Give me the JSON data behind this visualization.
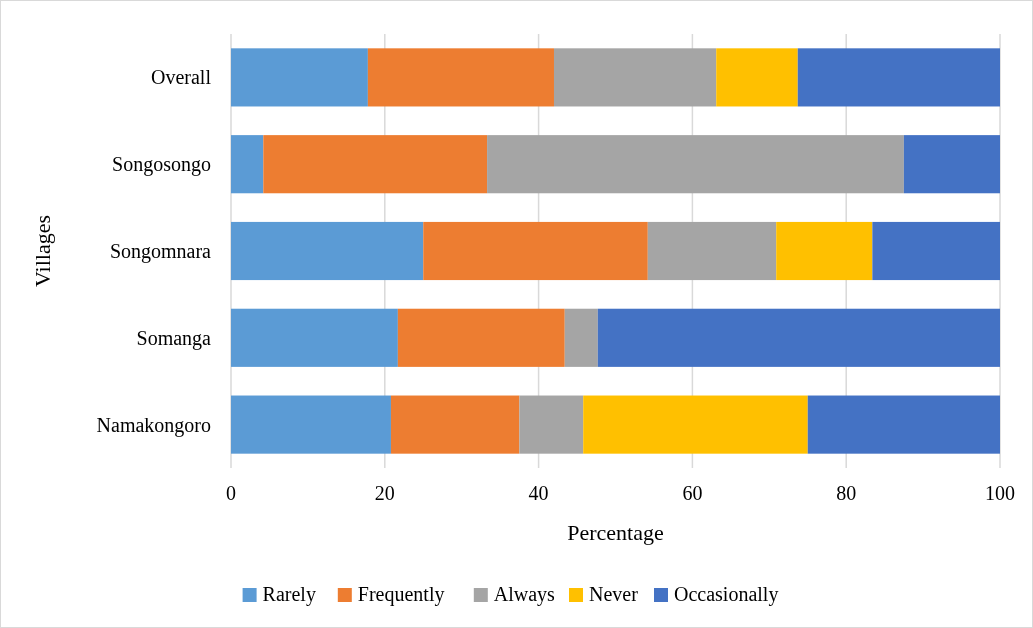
{
  "chart_data": {
    "type": "bar",
    "orientation": "horizontal",
    "stacked": true,
    "xlabel": "Percentage",
    "ylabel": "Villages",
    "categories": [
      "Overall",
      "Songosongo",
      "Songomnara",
      "Somanga",
      "Namakongoro"
    ],
    "series": [
      {
        "name": "Rarely",
        "color": "#5b9bd5",
        "values": [
          17.8,
          4.2,
          25.0,
          21.7,
          20.8
        ]
      },
      {
        "name": "Frequently",
        "color": "#ed7d31",
        "values": [
          24.2,
          29.1,
          29.2,
          21.7,
          16.7
        ]
      },
      {
        "name": "Always",
        "color": "#a5a5a5",
        "values": [
          21.1,
          54.2,
          16.7,
          4.3,
          8.3
        ]
      },
      {
        "name": "Never",
        "color": "#ffc000",
        "values": [
          10.6,
          0,
          12.5,
          0,
          29.2
        ]
      },
      {
        "name": "Occasionally",
        "color": "#4472c4",
        "values": [
          26.3,
          12.5,
          16.6,
          52.3,
          25.0
        ]
      }
    ],
    "xlim": [
      0,
      100
    ],
    "xticks": [
      0,
      20,
      40,
      60,
      80,
      100
    ],
    "grid": "x",
    "legend": "bottom"
  }
}
